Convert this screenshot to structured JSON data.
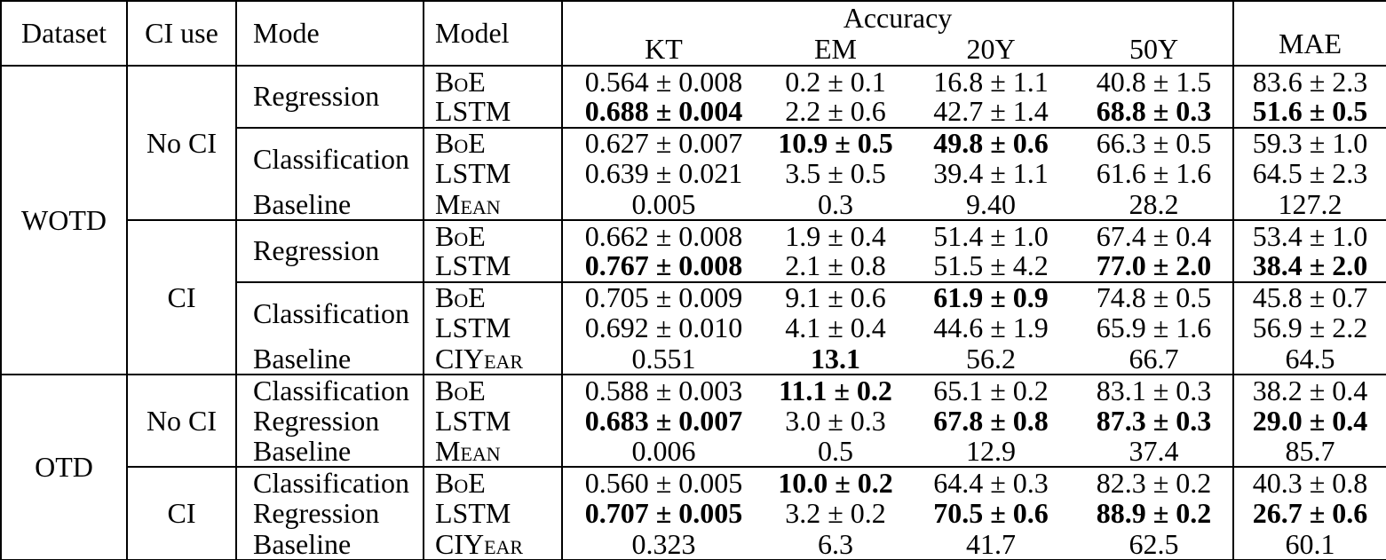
{
  "table": {
    "colors": {
      "border": "#000000",
      "text": "#000000",
      "background": "#ffffff"
    },
    "header": {
      "dataset": "Dataset",
      "ci_use": "CI use",
      "mode": "Mode",
      "model": "Model",
      "accuracy": "Accuracy",
      "metrics": [
        "KT",
        "EM",
        "20Y",
        "50Y"
      ],
      "mae": "MAE"
    },
    "sections": [
      {
        "dataset": "WOTD",
        "ci_groups": [
          {
            "ci_use": "No CI",
            "mode_groups": [
              {
                "mode": "Regression",
                "rule_above": false,
                "rows": [
                  {
                    "model": "BoE",
                    "values": [
                      {
                        "t": "0.564 ± 0.008",
                        "b": false
                      },
                      {
                        "t": "0.2 ± 0.1",
                        "b": false
                      },
                      {
                        "t": "16.8 ± 1.1",
                        "b": false
                      },
                      {
                        "t": "40.8 ± 1.5",
                        "b": false
                      },
                      {
                        "t": "83.6 ± 2.3",
                        "b": false
                      }
                    ]
                  },
                  {
                    "model": "LSTM",
                    "values": [
                      {
                        "t": "0.688 ± 0.004",
                        "b": true
                      },
                      {
                        "t": "2.2 ± 0.6",
                        "b": false
                      },
                      {
                        "t": "42.7 ± 1.4",
                        "b": false
                      },
                      {
                        "t": "68.8 ± 0.3",
                        "b": true
                      },
                      {
                        "t": "51.6 ± 0.5",
                        "b": true
                      }
                    ]
                  }
                ]
              },
              {
                "mode": "Classification",
                "rule_above": true,
                "rows": [
                  {
                    "model": "BoE",
                    "values": [
                      {
                        "t": "0.627 ± 0.007",
                        "b": false
                      },
                      {
                        "t": "10.9 ± 0.5",
                        "b": true
                      },
                      {
                        "t": "49.8 ± 0.6",
                        "b": true
                      },
                      {
                        "t": "66.3 ± 0.5",
                        "b": false
                      },
                      {
                        "t": "59.3 ± 1.0",
                        "b": false
                      }
                    ]
                  },
                  {
                    "model": "LSTM",
                    "values": [
                      {
                        "t": "0.639 ± 0.021",
                        "b": false
                      },
                      {
                        "t": "3.5 ± 0.5",
                        "b": false
                      },
                      {
                        "t": "39.4 ± 1.1",
                        "b": false
                      },
                      {
                        "t": "61.6 ± 1.6",
                        "b": false
                      },
                      {
                        "t": "64.5 ± 2.3",
                        "b": false
                      }
                    ]
                  }
                ]
              },
              {
                "mode": "Baseline",
                "rule_above": false,
                "rows": [
                  {
                    "model": "Mean",
                    "values": [
                      {
                        "t": "0.005",
                        "b": false
                      },
                      {
                        "t": "0.3",
                        "b": false
                      },
                      {
                        "t": "9.40",
                        "b": false
                      },
                      {
                        "t": "28.2",
                        "b": false
                      },
                      {
                        "t": "127.2",
                        "b": false
                      }
                    ]
                  }
                ]
              }
            ]
          },
          {
            "ci_use": "CI",
            "mode_groups": [
              {
                "mode": "Regression",
                "rule_above": false,
                "rows": [
                  {
                    "model": "BoE",
                    "values": [
                      {
                        "t": "0.662 ± 0.008",
                        "b": false
                      },
                      {
                        "t": "1.9 ± 0.4",
                        "b": false
                      },
                      {
                        "t": "51.4 ± 1.0",
                        "b": false
                      },
                      {
                        "t": "67.4 ± 0.4",
                        "b": false
                      },
                      {
                        "t": "53.4 ± 1.0",
                        "b": false
                      }
                    ]
                  },
                  {
                    "model": "LSTM",
                    "values": [
                      {
                        "t": "0.767 ± 0.008",
                        "b": true
                      },
                      {
                        "t": "2.1 ± 0.8",
                        "b": false
                      },
                      {
                        "t": "51.5 ± 4.2",
                        "b": false
                      },
                      {
                        "t": "77.0 ± 2.0",
                        "b": true
                      },
                      {
                        "t": "38.4 ± 2.0",
                        "b": true
                      }
                    ]
                  }
                ]
              },
              {
                "mode": "Classification",
                "rule_above": true,
                "rows": [
                  {
                    "model": "BoE",
                    "values": [
                      {
                        "t": "0.705 ± 0.009",
                        "b": false
                      },
                      {
                        "t": "9.1 ± 0.6",
                        "b": false
                      },
                      {
                        "t": "61.9 ± 0.9",
                        "b": true
                      },
                      {
                        "t": "74.8 ± 0.5",
                        "b": false
                      },
                      {
                        "t": "45.8 ± 0.7",
                        "b": false
                      }
                    ]
                  },
                  {
                    "model": "LSTM",
                    "values": [
                      {
                        "t": "0.692 ± 0.010",
                        "b": false
                      },
                      {
                        "t": "4.1 ± 0.4",
                        "b": false
                      },
                      {
                        "t": "44.6 ± 1.9",
                        "b": false
                      },
                      {
                        "t": "65.9 ± 1.6",
                        "b": false
                      },
                      {
                        "t": "56.9 ± 2.2",
                        "b": false
                      }
                    ]
                  }
                ]
              },
              {
                "mode": "Baseline",
                "rule_above": false,
                "rows": [
                  {
                    "model": "CIYear",
                    "values": [
                      {
                        "t": "0.551",
                        "b": false
                      },
                      {
                        "t": "13.1",
                        "b": true
                      },
                      {
                        "t": "56.2",
                        "b": false
                      },
                      {
                        "t": "66.7",
                        "b": false
                      },
                      {
                        "t": "64.5",
                        "b": false
                      }
                    ]
                  }
                ]
              }
            ]
          }
        ]
      },
      {
        "dataset": "OTD",
        "ci_groups": [
          {
            "ci_use": "No CI",
            "mode_groups": [
              {
                "mode": "Classification",
                "rule_above": false,
                "rows": [
                  {
                    "model": "BoE",
                    "values": [
                      {
                        "t": "0.588 ± 0.003",
                        "b": false
                      },
                      {
                        "t": "11.1 ± 0.2",
                        "b": true
                      },
                      {
                        "t": "65.1 ± 0.2",
                        "b": false
                      },
                      {
                        "t": "83.1 ± 0.3",
                        "b": false
                      },
                      {
                        "t": "38.2 ± 0.4",
                        "b": false
                      }
                    ]
                  }
                ]
              },
              {
                "mode": "Regression",
                "rule_above": false,
                "rows": [
                  {
                    "model": "LSTM",
                    "values": [
                      {
                        "t": "0.683 ± 0.007",
                        "b": true
                      },
                      {
                        "t": "3.0 ± 0.3",
                        "b": false
                      },
                      {
                        "t": "67.8 ± 0.8",
                        "b": true
                      },
                      {
                        "t": "87.3 ± 0.3",
                        "b": true
                      },
                      {
                        "t": "29.0 ± 0.4",
                        "b": true
                      }
                    ]
                  }
                ]
              },
              {
                "mode": "Baseline",
                "rule_above": false,
                "rows": [
                  {
                    "model": "Mean",
                    "values": [
                      {
                        "t": "0.006",
                        "b": false
                      },
                      {
                        "t": "0.5",
                        "b": false
                      },
                      {
                        "t": "12.9",
                        "b": false
                      },
                      {
                        "t": "37.4",
                        "b": false
                      },
                      {
                        "t": "85.7",
                        "b": false
                      }
                    ]
                  }
                ]
              }
            ]
          },
          {
            "ci_use": "CI",
            "mode_groups": [
              {
                "mode": "Classification",
                "rule_above": false,
                "rows": [
                  {
                    "model": "BoE",
                    "values": [
                      {
                        "t": "0.560 ± 0.005",
                        "b": false
                      },
                      {
                        "t": "10.0 ± 0.2",
                        "b": true
                      },
                      {
                        "t": "64.4 ± 0.3",
                        "b": false
                      },
                      {
                        "t": "82.3 ± 0.2",
                        "b": false
                      },
                      {
                        "t": "40.3 ± 0.8",
                        "b": false
                      }
                    ]
                  }
                ]
              },
              {
                "mode": "Regression",
                "rule_above": false,
                "rows": [
                  {
                    "model": "LSTM",
                    "values": [
                      {
                        "t": "0.707 ± 0.005",
                        "b": true
                      },
                      {
                        "t": "3.2 ± 0.2",
                        "b": false
                      },
                      {
                        "t": "70.5 ± 0.6",
                        "b": true
                      },
                      {
                        "t": "88.9 ± 0.2",
                        "b": true
                      },
                      {
                        "t": "26.7 ± 0.6",
                        "b": true
                      }
                    ]
                  }
                ]
              },
              {
                "mode": "Baseline",
                "rule_above": false,
                "rows": [
                  {
                    "model": "CIYear",
                    "values": [
                      {
                        "t": "0.323",
                        "b": false
                      },
                      {
                        "t": "6.3",
                        "b": false
                      },
                      {
                        "t": "41.7",
                        "b": false
                      },
                      {
                        "t": "62.5",
                        "b": false
                      },
                      {
                        "t": "60.1",
                        "b": false
                      }
                    ]
                  }
                ]
              }
            ]
          }
        ]
      }
    ]
  }
}
